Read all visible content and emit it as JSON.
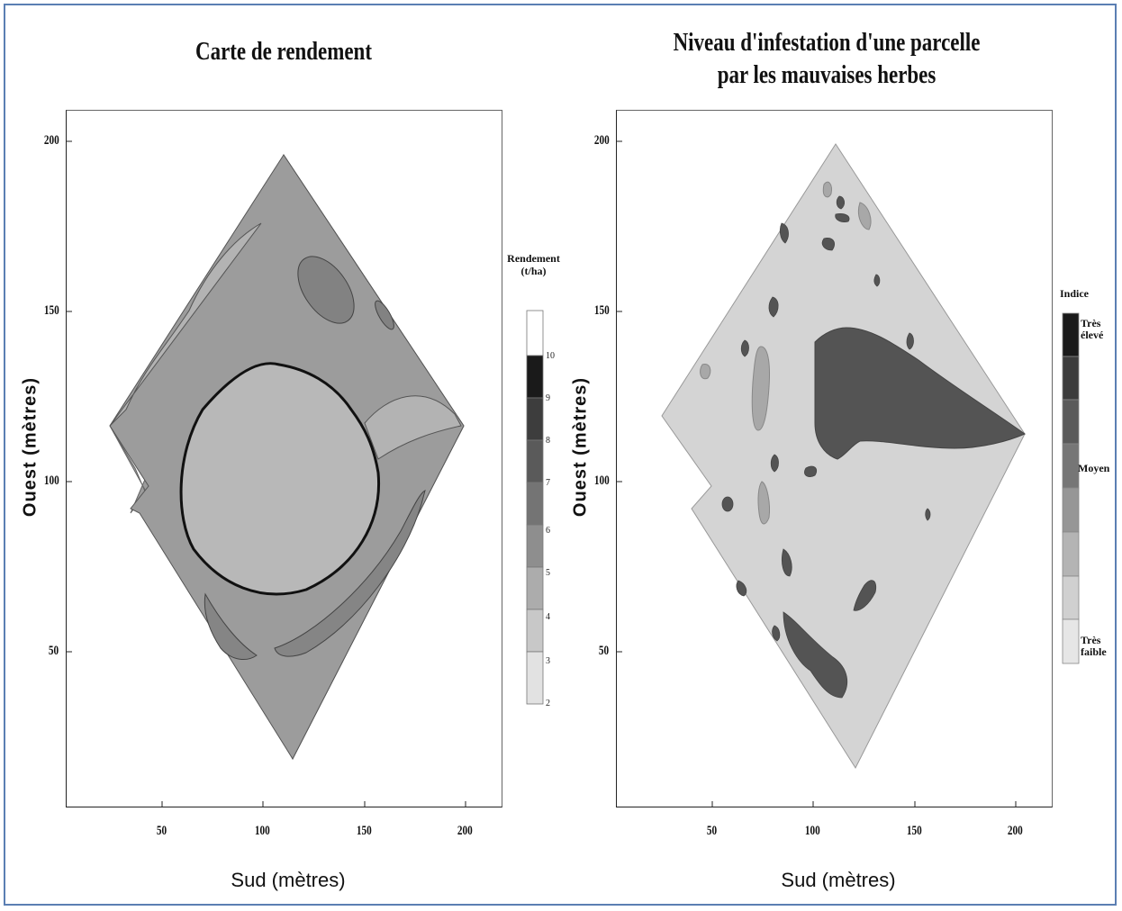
{
  "left_map": {
    "title": "Carte de rendement",
    "xlabel": "Sud (mètres)",
    "ylabel": "Ouest (mètres)",
    "x_ticks": [
      "50",
      "100",
      "150",
      "200"
    ],
    "y_ticks": [
      "200",
      "150",
      "100",
      "50"
    ],
    "legend": {
      "title_line1": "Rendement",
      "title_line2": "(t/ha)",
      "values": [
        "10",
        "9",
        "8",
        "7",
        "6",
        "5",
        "4",
        "3",
        "2"
      ]
    }
  },
  "right_map": {
    "title_line1": "Niveau d'infestation d'une parcelle",
    "title_line2": "par les mauvaises herbes",
    "xlabel": "Sud (mètres)",
    "ylabel": "Ouest (mètres)",
    "x_ticks": [
      "50",
      "100",
      "150",
      "200"
    ],
    "y_ticks": [
      "200",
      "150",
      "100",
      "50"
    ],
    "legend": {
      "title": "Indice",
      "high_line1": "Très",
      "high_line2": "élevé",
      "mid": "Moyen",
      "low_line1": "Très",
      "low_line2": "faible"
    }
  },
  "colors": {
    "field_base": "#9c9c9c",
    "field_light": "#b3b3b3",
    "field_dark": "#7c7c7c",
    "weed_base": "#d4d4d4",
    "weed_high": "#545454",
    "weed_mid": "#a8a8a8",
    "frame_border": "#5b7fb3"
  }
}
